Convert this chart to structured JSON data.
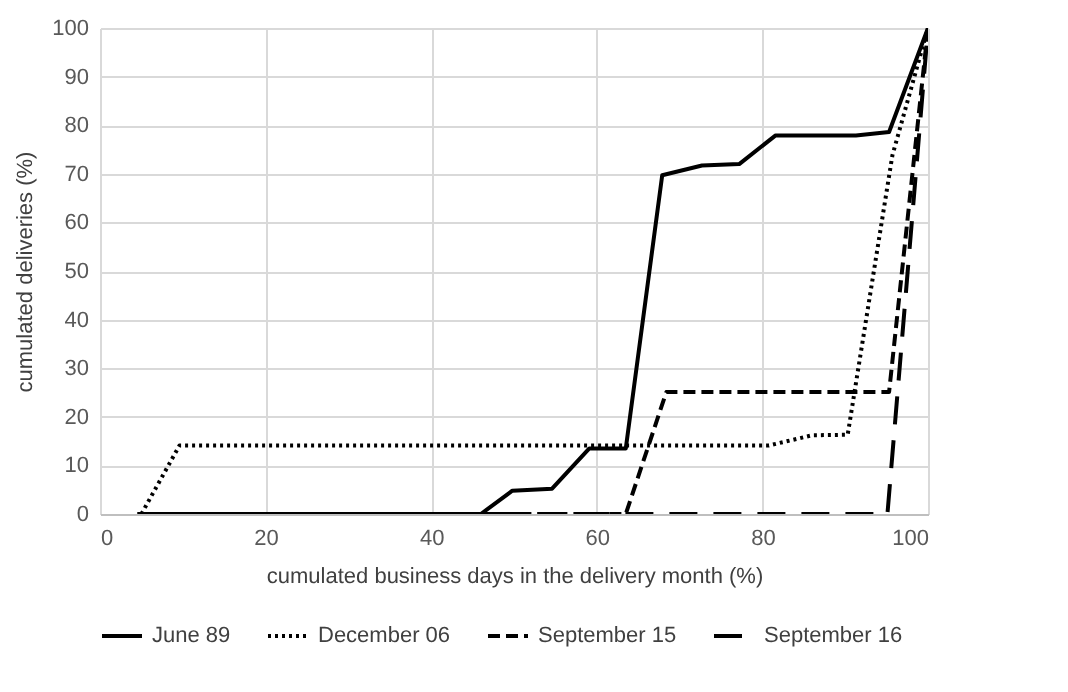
{
  "chart_data": {
    "type": "line",
    "xlabel": "cumulated business days in the delivery month  (%)",
    "ylabel": "cumulated deliveries (%)",
    "xlim": [
      0,
      100
    ],
    "ylim": [
      0,
      100
    ],
    "xticks": [
      0,
      20,
      40,
      60,
      80,
      100
    ],
    "yticks": [
      0,
      10,
      20,
      30,
      40,
      50,
      60,
      70,
      80,
      90,
      100
    ],
    "grid": true,
    "legend": "bottom",
    "marker": "none",
    "series": [
      {
        "name": "June 89",
        "color": "#000000",
        "line_style": "solid",
        "x": [
          4.5,
          46,
          49.8,
          54.6,
          59.1,
          63.5,
          67.9,
          72.7,
          77.2,
          81.6,
          91.3,
          95.3,
          100
        ],
        "values": [
          0,
          0,
          4.8,
          5.2,
          13.5,
          13.5,
          69.7,
          71.7,
          72,
          77.9,
          77.9,
          78.6,
          100
        ]
      },
      {
        "name": "December 06",
        "color": "#000000",
        "line_style": "dotted",
        "x": [
          5,
          9.6,
          80.8,
          86,
          90.3,
          95.7,
          100
        ],
        "values": [
          0,
          14.1,
          14.1,
          16.2,
          16.3,
          73.8,
          100
        ]
      },
      {
        "name": "September 15",
        "color": "#000000",
        "line_style": "dashed",
        "x": [
          5,
          63.5,
          68.4,
          95.3,
          100
        ],
        "values": [
          0,
          0,
          25.1,
          25.1,
          100
        ]
      },
      {
        "name": "September 16",
        "color": "#000000",
        "line_style": "dashed",
        "x": [
          5,
          95.1,
          100
        ],
        "values": [
          0,
          0,
          100
        ]
      }
    ]
  }
}
